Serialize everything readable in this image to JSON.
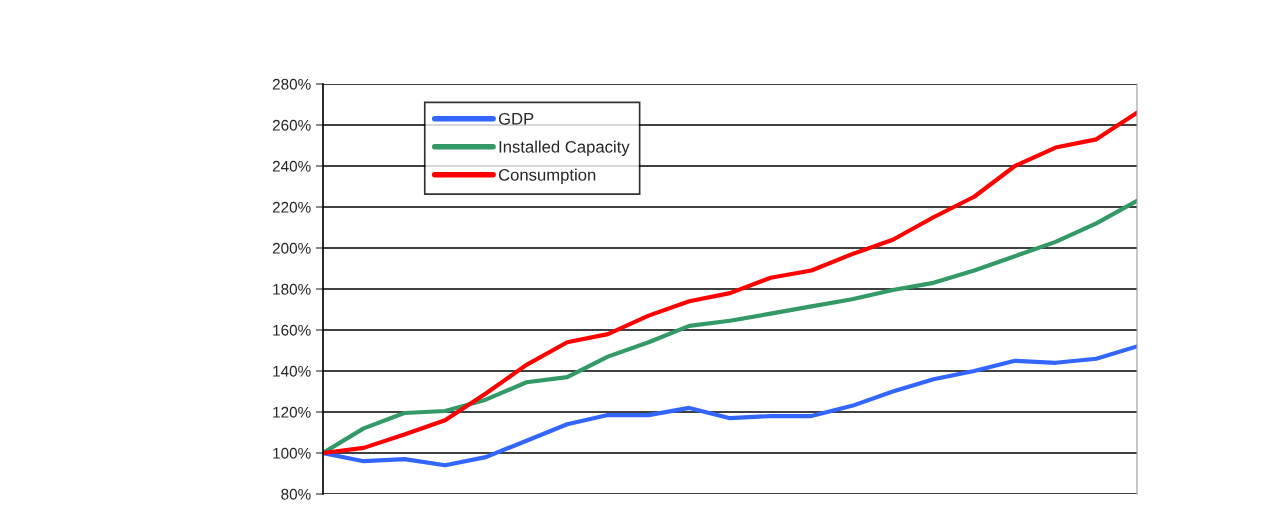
{
  "chart_data": {
    "type": "line",
    "categories": [
      null,
      null,
      null,
      null,
      null,
      null,
      null,
      null,
      null,
      null,
      null,
      null,
      null,
      null,
      null,
      null,
      null,
      null,
      null,
      null,
      null
    ],
    "series": [
      {
        "name": "GDP",
        "color": "#3366ff",
        "values": [
          100,
          96,
          97,
          94,
          98,
          106,
          114,
          118.5,
          118.5,
          122,
          117,
          118,
          118,
          123,
          130,
          136,
          140,
          145,
          144,
          146,
          152
        ]
      },
      {
        "name": "Installed Capacity",
        "color": "#339966",
        "values": [
          100,
          112,
          119.5,
          120.5,
          126,
          134.5,
          137,
          147,
          154,
          162,
          164.5,
          168,
          171.5,
          175,
          179.5,
          183,
          189,
          196,
          203,
          212,
          223
        ]
      },
      {
        "name": "Consumption",
        "color": "#ff0000",
        "values": [
          100,
          102.5,
          109,
          116,
          129,
          143,
          154,
          158,
          167,
          174,
          178,
          185.5,
          189,
          197,
          204,
          215,
          225,
          240,
          249,
          253,
          266
        ]
      }
    ],
    "ylim": [
      80,
      280
    ],
    "yticks": [
      {
        "value": 80,
        "label": "80%"
      },
      {
        "value": 100,
        "label": "100%"
      },
      {
        "value": 120,
        "label": "120%"
      },
      {
        "value": 140,
        "label": "140%"
      },
      {
        "value": 160,
        "label": "160%"
      },
      {
        "value": 180,
        "label": "180%"
      },
      {
        "value": 200,
        "label": "200%"
      },
      {
        "value": 220,
        "label": "220%"
      },
      {
        "value": 240,
        "label": "240%"
      },
      {
        "value": 260,
        "label": "260%"
      },
      {
        "value": 280,
        "label": "280%"
      }
    ],
    "grid": "y",
    "legend": "top left",
    "tick_labels": "y",
    "marker": "none",
    "line_style": "solid"
  }
}
